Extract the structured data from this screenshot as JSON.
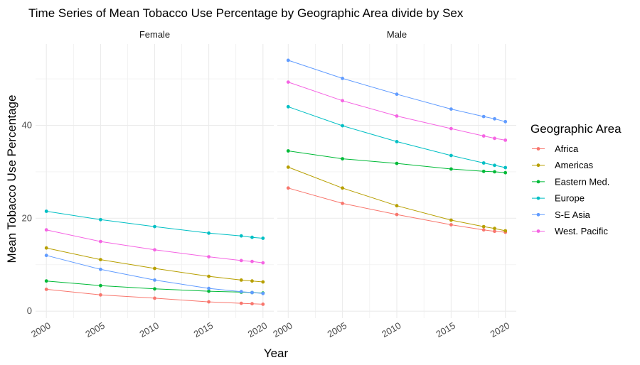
{
  "chart_data": {
    "type": "line",
    "title": "Time Series of Mean Tobacco Use Percentage by Geographic Area divide by Sex",
    "xlabel": "Year",
    "ylabel": "Mean Tobacco Use Percentage",
    "x": [
      2000,
      2005,
      2010,
      2015,
      2018,
      2019,
      2020
    ],
    "x_ticks": [
      "2000",
      "2005",
      "2010",
      "2015",
      "2020"
    ],
    "y_ticks": [
      "0",
      "20",
      "40"
    ],
    "xlim": [
      1999,
      2021
    ],
    "ylim": [
      -1.5,
      57.5
    ],
    "legend_title": "Geographic Area",
    "legend_position": "right",
    "grid": true,
    "series_meta": [
      {
        "name": "Africa",
        "color": "#F8766D"
      },
      {
        "name": "Americas",
        "color": "#B79F00"
      },
      {
        "name": "Eastern Med.",
        "color": "#00BA38"
      },
      {
        "name": "Europe",
        "color": "#00BFC4"
      },
      {
        "name": "S-E Asia",
        "color": "#619CFF"
      },
      {
        "name": "West. Pacific",
        "color": "#F564E3"
      }
    ],
    "facets": [
      {
        "label": "Female",
        "series": [
          {
            "name": "Africa",
            "values": [
              4.7,
              3.5,
              2.8,
              2.0,
              1.7,
              1.6,
              1.5
            ]
          },
          {
            "name": "Americas",
            "values": [
              13.6,
              11.1,
              9.2,
              7.5,
              6.7,
              6.5,
              6.3
            ]
          },
          {
            "name": "Eastern Med.",
            "values": [
              6.5,
              5.5,
              4.8,
              4.3,
              4.1,
              4.0,
              3.9
            ]
          },
          {
            "name": "Europe",
            "values": [
              21.5,
              19.7,
              18.2,
              16.8,
              16.2,
              15.9,
              15.7
            ]
          },
          {
            "name": "S-E Asia",
            "values": [
              12.0,
              9.0,
              6.7,
              4.9,
              4.2,
              4.0,
              3.8
            ]
          },
          {
            "name": "West. Pacific",
            "values": [
              17.5,
              15.0,
              13.2,
              11.7,
              10.9,
              10.7,
              10.4
            ]
          }
        ]
      },
      {
        "label": "Male",
        "series": [
          {
            "name": "Africa",
            "values": [
              26.5,
              23.2,
              20.8,
              18.6,
              17.5,
              17.2,
              17.0
            ]
          },
          {
            "name": "Americas",
            "values": [
              31.0,
              26.5,
              22.7,
              19.6,
              18.2,
              17.8,
              17.3
            ]
          },
          {
            "name": "Eastern Med.",
            "values": [
              34.5,
              32.8,
              31.8,
              30.6,
              30.1,
              30.0,
              29.8
            ]
          },
          {
            "name": "Europe",
            "values": [
              44.0,
              39.9,
              36.5,
              33.5,
              31.9,
              31.4,
              30.9
            ]
          },
          {
            "name": "S-E Asia",
            "values": [
              54.0,
              50.1,
              46.7,
              43.5,
              41.9,
              41.4,
              40.8
            ]
          },
          {
            "name": "West. Pacific",
            "values": [
              49.3,
              45.3,
              42.0,
              39.3,
              37.7,
              37.2,
              36.8
            ]
          }
        ]
      }
    ]
  }
}
